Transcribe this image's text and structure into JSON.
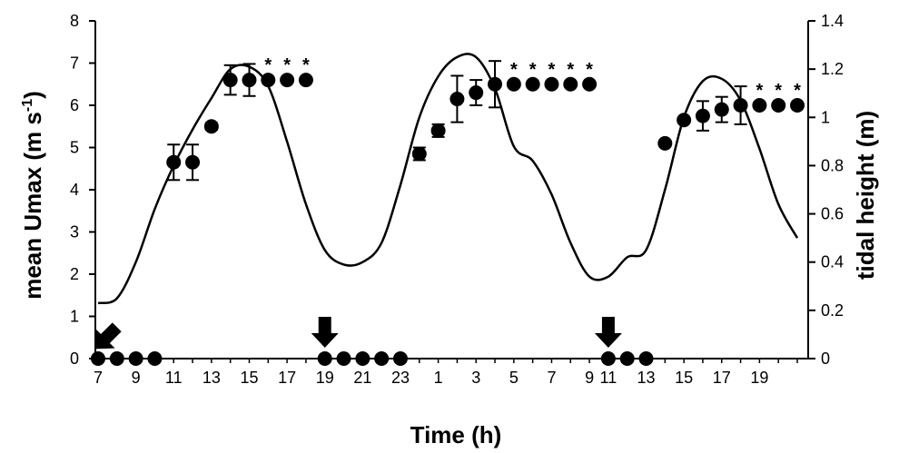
{
  "chart_data": {
    "type": "line+scatter",
    "xlabel": "Time (h)",
    "ylabel_left": "mean Umax (m s",
    "ylabel_left_sup": "-1",
    "ylabel_left_close": ")",
    "ylabel_right": "tidal height (m)",
    "ylim_left": [
      0,
      8
    ],
    "ylim_right": [
      0,
      1.4
    ],
    "yticks_left": [
      "0",
      "1",
      "2",
      "3",
      "4",
      "5",
      "6",
      "7",
      "8"
    ],
    "yticks_right": [
      "0",
      "0.2",
      "0.4",
      "0.6",
      "0.8",
      "1",
      "1.2",
      "1.4"
    ],
    "xtick_labels": [
      "7",
      "9",
      "11",
      "13",
      "15",
      "17",
      "19",
      "21",
      "23",
      "1",
      "3",
      "5",
      "7",
      "9",
      "11",
      "13",
      "15",
      "17",
      "19"
    ],
    "x_hour_index_range": [
      0,
      37
    ],
    "xtick_hour_index": [
      0,
      2,
      4,
      6,
      8,
      10,
      12,
      14,
      16,
      18,
      20,
      22,
      24,
      26,
      27,
      29,
      31,
      33,
      35
    ],
    "series": [
      {
        "kind": "scatter-errorbar",
        "axis": "left",
        "points": [
          {
            "x": 0,
            "y": 0
          },
          {
            "x": 1,
            "y": 0
          },
          {
            "x": 2,
            "y": 0
          },
          {
            "x": 3,
            "y": 0
          },
          {
            "x": 4,
            "y": 4.65,
            "err": 0.42
          },
          {
            "x": 5,
            "y": 4.65,
            "err": 0.42
          },
          {
            "x": 6,
            "y": 5.5,
            "err": 0.08
          },
          {
            "x": 7,
            "y": 6.6,
            "err": 0.35
          },
          {
            "x": 8,
            "y": 6.6,
            "err": 0.38
          },
          {
            "x": 9,
            "y": 6.6
          },
          {
            "x": 10,
            "y": 6.6
          },
          {
            "x": 11,
            "y": 6.6
          },
          {
            "x": 12,
            "y": 0
          },
          {
            "x": 13,
            "y": 0
          },
          {
            "x": 14,
            "y": 0
          },
          {
            "x": 15,
            "y": 0
          },
          {
            "x": 16,
            "y": 0
          },
          {
            "x": 17,
            "y": 4.85,
            "err": 0.15
          },
          {
            "x": 18,
            "y": 5.4,
            "err": 0.15
          },
          {
            "x": 19,
            "y": 6.15,
            "err": 0.55
          },
          {
            "x": 20,
            "y": 6.3,
            "err": 0.3
          },
          {
            "x": 21,
            "y": 6.5,
            "err": 0.55
          },
          {
            "x": 22,
            "y": 6.5
          },
          {
            "x": 23,
            "y": 6.5
          },
          {
            "x": 24,
            "y": 6.5
          },
          {
            "x": 25,
            "y": 6.5
          },
          {
            "x": 26,
            "y": 6.5
          },
          {
            "x": 27,
            "y": 0
          },
          {
            "x": 28,
            "y": 0
          },
          {
            "x": 29,
            "y": 0
          },
          {
            "x": 30,
            "y": 5.1,
            "err": 0.05
          },
          {
            "x": 31,
            "y": 5.65
          },
          {
            "x": 32,
            "y": 5.75,
            "err": 0.35
          },
          {
            "x": 33,
            "y": 5.9,
            "err": 0.3
          },
          {
            "x": 34,
            "y": 6.0,
            "err": 0.45
          },
          {
            "x": 35,
            "y": 6.0
          },
          {
            "x": 36,
            "y": 6.0
          },
          {
            "x": 37,
            "y": 6.0
          }
        ]
      },
      {
        "kind": "line",
        "axis": "right",
        "points": [
          [
            0,
            0.23
          ],
          [
            1,
            0.25
          ],
          [
            2,
            0.4
          ],
          [
            3,
            0.62
          ],
          [
            4,
            0.8
          ],
          [
            5,
            0.95
          ],
          [
            6,
            1.08
          ],
          [
            7,
            1.2
          ],
          [
            8,
            1.21
          ],
          [
            9,
            1.13
          ],
          [
            10,
            0.9
          ],
          [
            11,
            0.64
          ],
          [
            12,
            0.45
          ],
          [
            13,
            0.39
          ],
          [
            14,
            0.4
          ],
          [
            15,
            0.48
          ],
          [
            16,
            0.72
          ],
          [
            17,
            1.0
          ],
          [
            18,
            1.17
          ],
          [
            19,
            1.25
          ],
          [
            20,
            1.25
          ],
          [
            21,
            1.12
          ],
          [
            22,
            0.88
          ],
          [
            23,
            0.82
          ],
          [
            24,
            0.68
          ],
          [
            25,
            0.48
          ],
          [
            26,
            0.34
          ],
          [
            27,
            0.34
          ],
          [
            28,
            0.42
          ],
          [
            29,
            0.45
          ],
          [
            30,
            0.7
          ],
          [
            31,
            1.0
          ],
          [
            32,
            1.15
          ],
          [
            33,
            1.16
          ],
          [
            34,
            1.07
          ],
          [
            35,
            0.87
          ],
          [
            36,
            0.64
          ],
          [
            37,
            0.5
          ]
        ]
      }
    ],
    "asterisk_x": [
      9,
      10,
      11,
      22,
      23,
      24,
      25,
      26,
      35,
      36,
      37
    ],
    "asterisk_label": "*",
    "arrow_x": [
      0,
      12,
      27
    ]
  }
}
